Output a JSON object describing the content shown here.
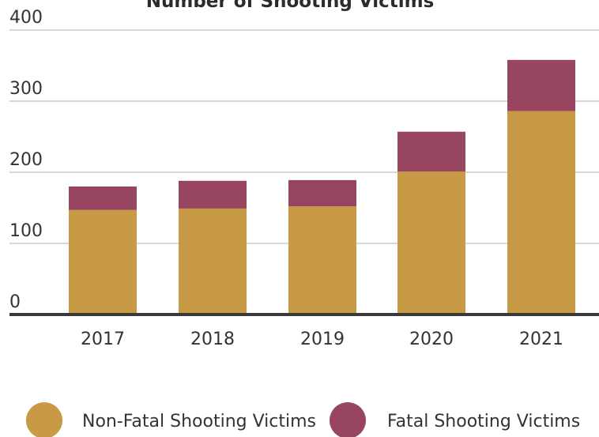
{
  "chart_data": {
    "type": "bar",
    "stacked": true,
    "title": "Number of Shooting Victims",
    "xlabel": "",
    "ylabel": "",
    "ylim": [
      0,
      400
    ],
    "yticks": [
      0,
      100,
      200,
      300,
      400
    ],
    "ytick_labels": [
      "0",
      "100",
      "200",
      "300",
      "400"
    ],
    "grid": "horizontal",
    "categories": [
      "2017",
      "2018",
      "2019",
      "2020",
      "2021"
    ],
    "series": [
      {
        "name": "Non-Fatal Shooting Victims",
        "color": "#c99a45",
        "values": [
          147,
          149,
          152,
          201,
          286
        ]
      },
      {
        "name": "Fatal Shooting Victims",
        "color": "#98465f",
        "values": [
          33,
          39,
          37,
          56,
          72
        ]
      }
    ],
    "legend": {
      "placement": "bottom",
      "marker": "circle"
    },
    "colors": {
      "grid": "#cccccc",
      "baseline": "#3a3a3a",
      "text": "#333333"
    }
  }
}
